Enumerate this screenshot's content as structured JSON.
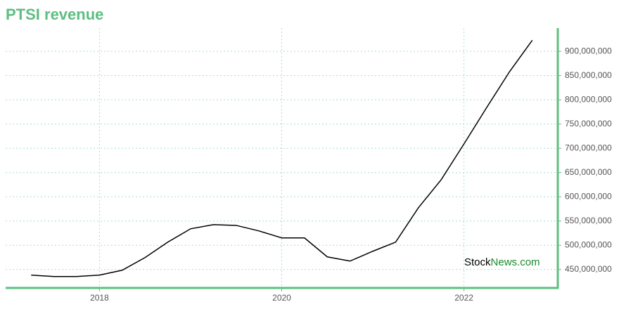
{
  "chart_data": {
    "type": "line",
    "title": "PTSI revenue",
    "x": [
      2017.25,
      2017.5,
      2017.75,
      2018,
      2018.25,
      2018.5,
      2018.75,
      2019,
      2019.25,
      2019.5,
      2019.75,
      2020,
      2020.25,
      2020.5,
      2020.75,
      2021,
      2021.25,
      2021.5,
      2021.75,
      2022,
      2022.25,
      2022.5,
      2022.75
    ],
    "series": [
      {
        "name": "PTSI revenue",
        "color": "#000000",
        "values": [
          438500000,
          435600000,
          435600000,
          438500000,
          448600000,
          474700000,
          506500000,
          534000000,
          542600000,
          541000000,
          529600000,
          515200000,
          515200000,
          476100000,
          467400000,
          487700000,
          506500000,
          577400000,
          635200000,
          709000000,
          784300000,
          858000000,
          923000000
        ]
      }
    ],
    "xlim": [
      2016.97,
      2023.03
    ],
    "xticks": [
      2018,
      2020,
      2022
    ],
    "ylim": [
      412000000,
      948000000
    ],
    "yticks": [
      {
        "value": 450000000,
        "label": "450,000,000"
      },
      {
        "value": 500000000,
        "label": "500,000,000"
      },
      {
        "value": 550000000,
        "label": "550,000,000"
      },
      {
        "value": 600000000,
        "label": "600,000,000"
      },
      {
        "value": 650000000,
        "label": "650,000,000"
      },
      {
        "value": 700000000,
        "label": "700,000,000"
      },
      {
        "value": 750000000,
        "label": "750,000,000"
      },
      {
        "value": 800000000,
        "label": "800,000,000"
      },
      {
        "value": 850000000,
        "label": "850,000,000"
      },
      {
        "value": 900000000,
        "label": "900,000,000"
      }
    ],
    "grid": true,
    "axis_color": "#5cbf80",
    "grid_color": "#a8ddd0",
    "watermark": [
      "Stock",
      "News.com"
    ]
  }
}
